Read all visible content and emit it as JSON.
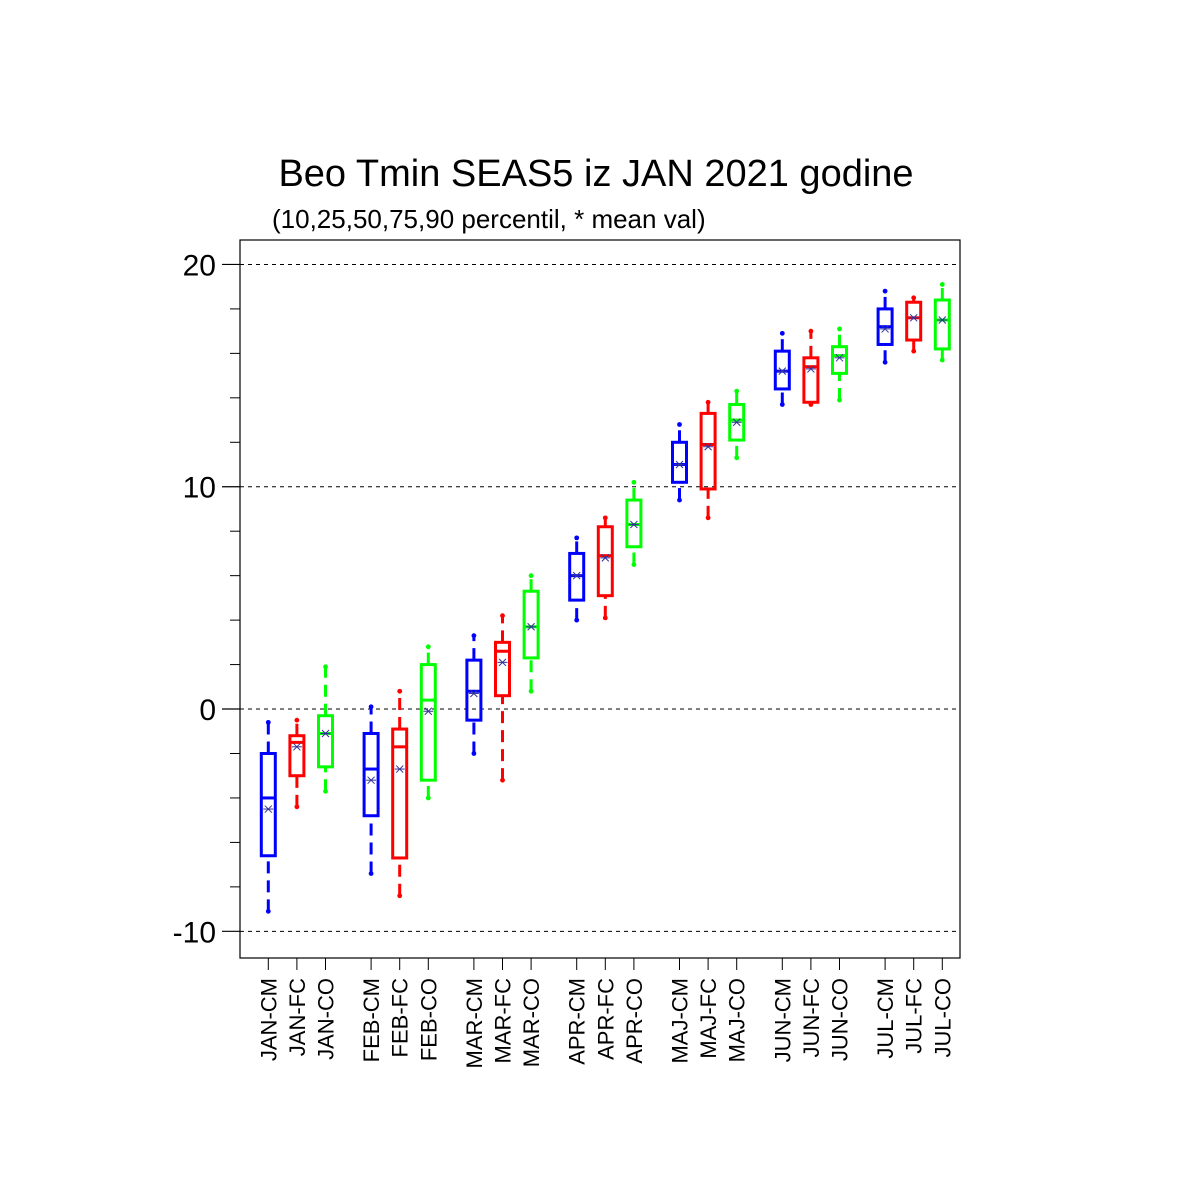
{
  "chart_data": {
    "type": "box",
    "title": "Beo Tmin SEAS5 iz JAN 2021 godine",
    "subtitle": "(10,25,50,75,90 percentil, * mean val)",
    "xlabel": "",
    "ylabel": "",
    "ylim": [
      -11.2,
      21.1
    ],
    "yticks": [
      -10,
      0,
      10,
      20
    ],
    "yticks_minor": [
      -8,
      -6,
      -4,
      -2,
      2,
      4,
      6,
      8,
      12,
      14,
      16,
      18
    ],
    "grid": "horizontal-dashed-at-major-ticks",
    "series_colors": {
      "CM": "#0000ff",
      "FC": "#ff0000",
      "CO": "#00ff00"
    },
    "mean_marker_color": "#333399",
    "boxes": [
      {
        "label": "JAN-CM",
        "p10": -9.1,
        "p25": -6.6,
        "median": -4.0,
        "p75": -2.0,
        "p90": -0.6,
        "mean": -4.5
      },
      {
        "label": "JAN-FC",
        "p10": -4.4,
        "p25": -3.0,
        "median": -1.5,
        "p75": -1.2,
        "p90": -0.5,
        "mean": -1.7
      },
      {
        "label": "JAN-CO",
        "p10": -3.7,
        "p25": -2.6,
        "median": -1.1,
        "p75": -0.3,
        "p90": 1.9,
        "mean": -1.1
      },
      {
        "label": "FEB-CM",
        "p10": -7.4,
        "p25": -4.8,
        "median": -2.7,
        "p75": -1.1,
        "p90": 0.1,
        "mean": -3.2
      },
      {
        "label": "FEB-FC",
        "p10": -8.4,
        "p25": -6.7,
        "median": -1.7,
        "p75": -0.9,
        "p90": 0.8,
        "mean": -2.7
      },
      {
        "label": "FEB-CO",
        "p10": -4.0,
        "p25": -3.2,
        "median": 0.4,
        "p75": 2.0,
        "p90": 2.8,
        "mean": -0.1
      },
      {
        "label": "MAR-CM",
        "p10": -2.0,
        "p25": -0.5,
        "median": 0.8,
        "p75": 2.2,
        "p90": 3.3,
        "mean": 0.7
      },
      {
        "label": "MAR-FC",
        "p10": -3.2,
        "p25": 0.6,
        "median": 2.6,
        "p75": 3.0,
        "p90": 4.2,
        "mean": 2.1
      },
      {
        "label": "MAR-CO",
        "p10": 0.8,
        "p25": 2.3,
        "median": 3.7,
        "p75": 5.3,
        "p90": 6.0,
        "mean": 3.7
      },
      {
        "label": "APR-CM",
        "p10": 4.0,
        "p25": 4.9,
        "median": 6.0,
        "p75": 7.0,
        "p90": 7.7,
        "mean": 6.0
      },
      {
        "label": "APR-FC",
        "p10": 4.1,
        "p25": 5.1,
        "median": 6.9,
        "p75": 8.2,
        "p90": 8.6,
        "mean": 6.8
      },
      {
        "label": "APR-CO",
        "p10": 6.5,
        "p25": 7.3,
        "median": 8.3,
        "p75": 9.4,
        "p90": 10.2,
        "mean": 8.3
      },
      {
        "label": "MAJ-CM",
        "p10": 9.4,
        "p25": 10.2,
        "median": 11.0,
        "p75": 12.0,
        "p90": 12.8,
        "mean": 11.0
      },
      {
        "label": "MAJ-FC",
        "p10": 8.6,
        "p25": 9.9,
        "median": 11.9,
        "p75": 13.3,
        "p90": 13.8,
        "mean": 11.8
      },
      {
        "label": "MAJ-CO",
        "p10": 11.3,
        "p25": 12.1,
        "median": 13.0,
        "p75": 13.7,
        "p90": 14.3,
        "mean": 12.9
      },
      {
        "label": "JUN-CM",
        "p10": 13.7,
        "p25": 14.4,
        "median": 15.2,
        "p75": 16.1,
        "p90": 16.9,
        "mean": 15.2
      },
      {
        "label": "JUN-FC",
        "p10": 13.7,
        "p25": 13.8,
        "median": 15.4,
        "p75": 15.8,
        "p90": 17.0,
        "mean": 15.3
      },
      {
        "label": "JUN-CO",
        "p10": 13.9,
        "p25": 15.1,
        "median": 15.9,
        "p75": 16.3,
        "p90": 17.1,
        "mean": 15.8
      },
      {
        "label": "JUL-CM",
        "p10": 15.6,
        "p25": 16.4,
        "median": 17.2,
        "p75": 18.0,
        "p90": 18.8,
        "mean": 17.1
      },
      {
        "label": "JUL-FC",
        "p10": 16.1,
        "p25": 16.6,
        "median": 17.6,
        "p75": 18.3,
        "p90": 18.5,
        "mean": 17.6
      },
      {
        "label": "JUL-CO",
        "p10": 15.7,
        "p25": 16.2,
        "median": 17.5,
        "p75": 18.4,
        "p90": 19.1,
        "mean": 17.5
      }
    ]
  }
}
